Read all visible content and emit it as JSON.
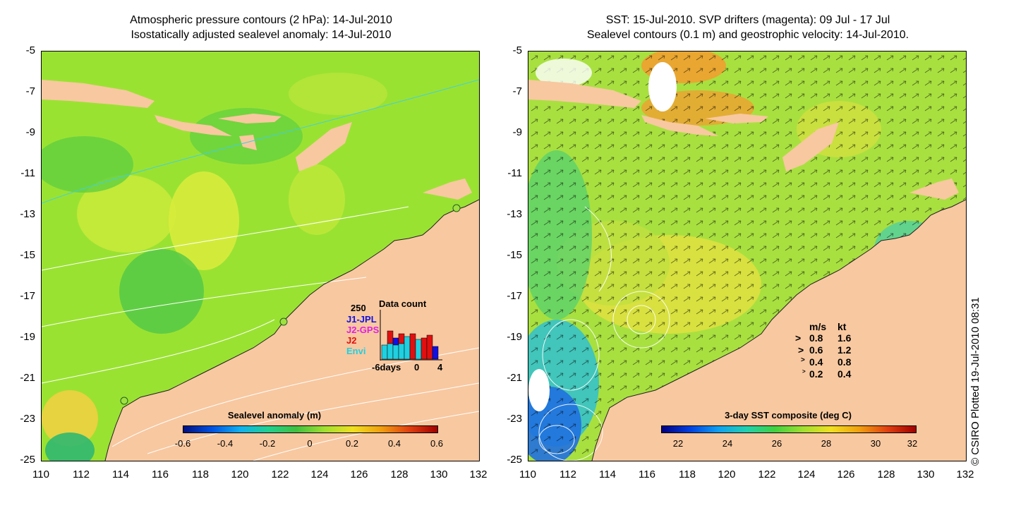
{
  "left_panel": {
    "title_line1": "Atmospheric pressure contours (2 hPa): 14-Jul-2010",
    "title_line2": "Isostatically adjusted sealevel anomaly: 14-Jul-2010",
    "colorbar": {
      "title": "Sealevel anomaly (m)",
      "labels": [
        "-0.6",
        "-0.4",
        "-0.2",
        "0",
        "0.2",
        "0.4",
        "0.6"
      ]
    },
    "data_count": {
      "title": "Data count",
      "max_label": "250",
      "missions": [
        {
          "name": "J1-JPL",
          "color": "#1010e0"
        },
        {
          "name": "J2-GPS",
          "color": "#e020e0"
        },
        {
          "name": "J2",
          "color": "#e01010"
        },
        {
          "name": "Envi",
          "color": "#20d0e0"
        }
      ],
      "x_labels": [
        "-6days",
        "0",
        "4"
      ]
    }
  },
  "right_panel": {
    "title_line1": "SST: 15-Jul-2010. SVP drifters (magenta): 09 Jul - 17 Jul",
    "title_line2": "Sealevel contours (0.1 m) and geostrophic velocity: 14-Jul-2010.",
    "colorbar": {
      "title": "3-day SST composite (deg C)",
      "labels": [
        "22",
        "24",
        "26",
        "28",
        "30",
        "32"
      ]
    },
    "velocity_legend": {
      "header_ms": "m/s",
      "header_kt": "kt",
      "rows": [
        {
          "ms": "0.8",
          "kt": "1.6"
        },
        {
          "ms": "0.6",
          "kt": "1.2"
        },
        {
          "ms": "0.4",
          "kt": "0.8"
        },
        {
          "ms": "0.2",
          "kt": "0.4"
        }
      ]
    }
  },
  "axes": {
    "x_ticks": [
      "110",
      "112",
      "114",
      "116",
      "118",
      "120",
      "122",
      "124",
      "126",
      "128",
      "130",
      "132"
    ],
    "y_ticks": [
      "-5",
      "-7",
      "-9",
      "-11",
      "-13",
      "-15",
      "-17",
      "-19",
      "-21",
      "-23",
      "-25"
    ]
  },
  "credit": "© CSIRO Plotted 19-Jul-2010 08:31",
  "colors": {
    "land": "#f8c8a0",
    "ocean_left": "#98e030",
    "ocean_right": "#a8e040",
    "contour": "#ffffff"
  }
}
